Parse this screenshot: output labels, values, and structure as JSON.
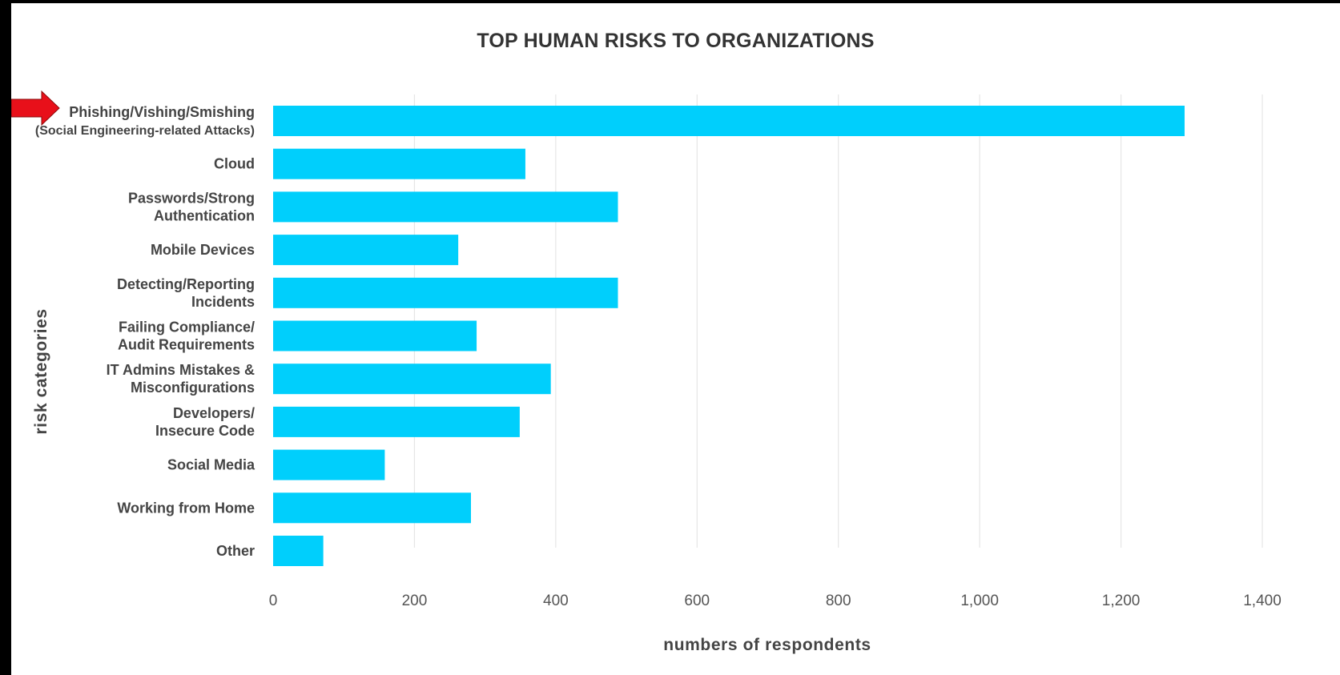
{
  "chart_data": {
    "type": "bar",
    "orientation": "horizontal",
    "title": "TOP HUMAN RISKS TO ORGANIZATIONS",
    "xlabel": "numbers of respondents",
    "ylabel": "risk categories",
    "categories": [
      [
        "Phishing/Vishing/Smishing",
        "(Social Engineering-related Attacks)"
      ],
      [
        "Cloud"
      ],
      [
        "Passwords/Strong",
        "Authentication"
      ],
      [
        "Mobile Devices"
      ],
      [
        "Detecting/Reporting",
        "Incidents"
      ],
      [
        "Failing Compliance/",
        "Audit Requirements"
      ],
      [
        "IT Admins Mistakes &",
        "Misconfigurations"
      ],
      [
        "Developers/",
        "Insecure Code"
      ],
      [
        "Social Media"
      ],
      [
        "Working from Home"
      ],
      [
        "Other"
      ]
    ],
    "values": [
      1290,
      357,
      488,
      262,
      488,
      288,
      393,
      349,
      158,
      280,
      71
    ],
    "xlim": [
      0,
      1400
    ],
    "x_ticks": [
      0,
      200,
      400,
      600,
      800,
      1000,
      1200,
      1400
    ],
    "x_tick_labels": [
      "0",
      "200",
      "400",
      "600",
      "800",
      "1,000",
      "1,200",
      "1,400"
    ],
    "grid": "vertical",
    "bar_color": "#00CFFC",
    "grid_color": "#E6E6E6",
    "highlight": {
      "category_index": 0,
      "marker": "arrow-right",
      "color": "#E8101A"
    }
  }
}
